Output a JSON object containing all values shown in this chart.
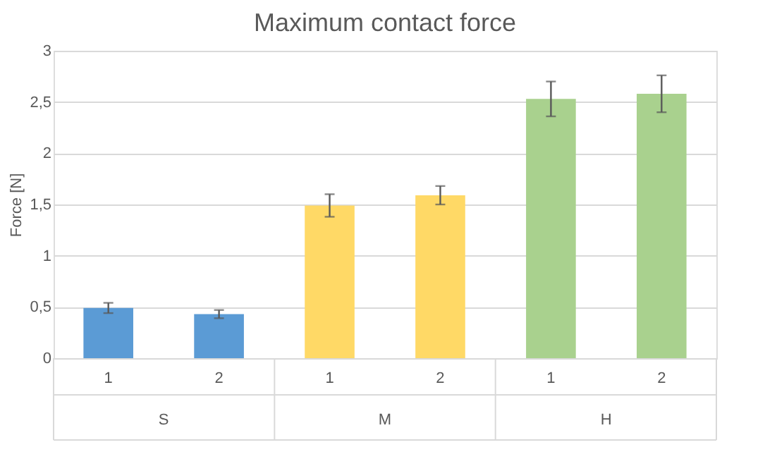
{
  "chart_data": {
    "type": "bar",
    "title": "Maximum contact force",
    "ylabel": "Force [N]",
    "categories": [
      "1",
      "2",
      "1",
      "2",
      "1",
      "2"
    ],
    "values": [
      0.49,
      0.43,
      1.49,
      1.59,
      2.53,
      2.58
    ],
    "errors": [
      0.05,
      0.04,
      0.11,
      0.09,
      0.17,
      0.18
    ],
    "colors": [
      "#5b9bd5",
      "#5b9bd5",
      "#ffd966",
      "#ffd966",
      "#a9d18e",
      "#a9d18e"
    ],
    "annotations": [
      "S",
      "M",
      "H"
    ],
    "ylim": [
      0,
      3
    ],
    "yticks": [
      0,
      {
        "value": 0.5,
        "label": "0,5"
      },
      1,
      {
        "value": 1.5,
        "label": "1,5"
      },
      2,
      {
        "value": 2.5,
        "label": "2,5"
      },
      3
    ],
    "grid": "y"
  }
}
